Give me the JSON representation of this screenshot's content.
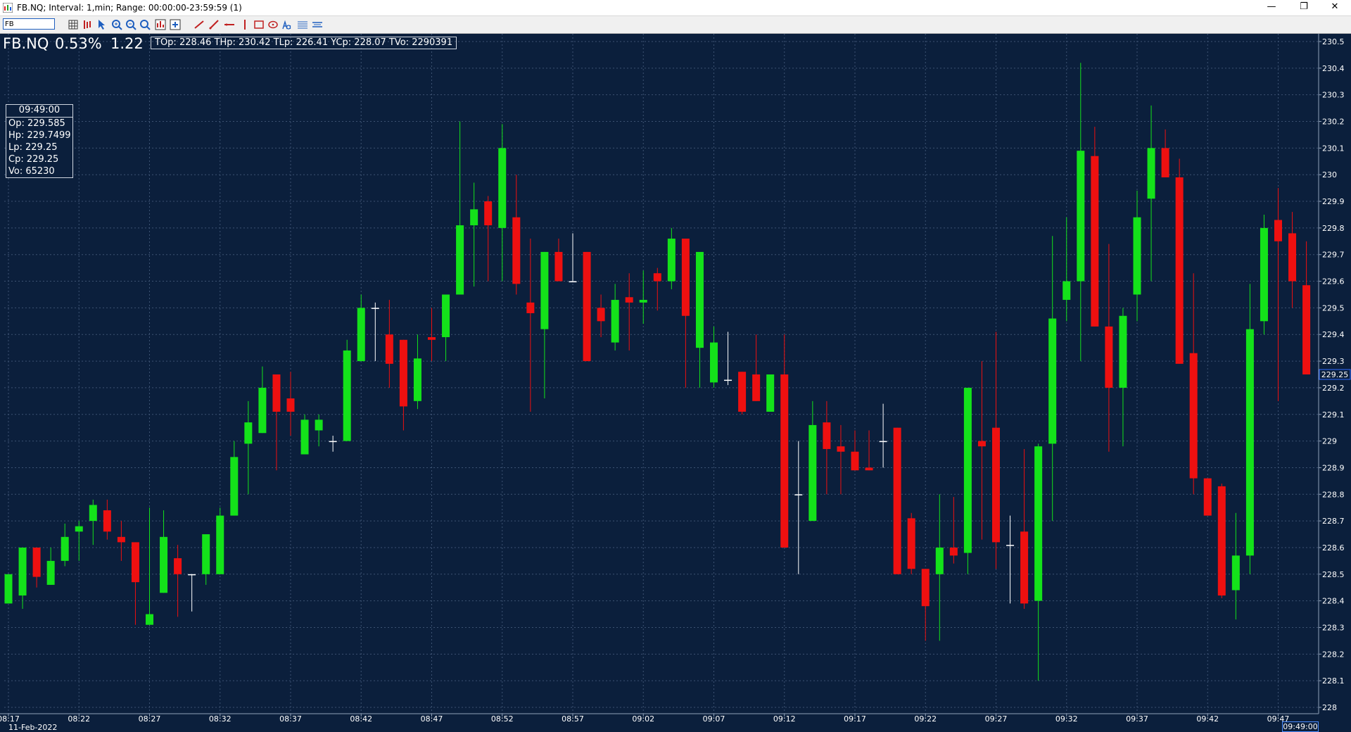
{
  "window": {
    "title": "FB.NQ; Interval: 1,min; Range: 00:00:00-23:59:59 (1)",
    "minimize_glyph": "—",
    "restore_glyph": "❐",
    "close_glyph": "✕"
  },
  "toolbar": {
    "symbol_value": "FB",
    "icons": [
      "grid-icon",
      "bars-icon",
      "cursor-arrow-icon",
      "zoom-in-icon",
      "zoom-out-icon",
      "zoom-fit-icon",
      "indicator-icon",
      "add-icon",
      "trend-line-icon",
      "ray-line-icon",
      "horizontal-line-icon",
      "vertical-line-icon",
      "rectangle-icon",
      "ellipse-icon",
      "text-icon",
      "fibonacci-icon",
      "channel-icon"
    ]
  },
  "header": {
    "symbol": "FB.NQ",
    "change_pct": "0.53%",
    "change_abs": "1.22",
    "summary": "TOp: 228.46 THp: 230.42 TLp: 226.41 YCp: 228.07 TVo: 2290391"
  },
  "ohlc_box": {
    "time": "09:49:00",
    "open": "Op: 229.585",
    "high": "Hp: 229.7499",
    "low": "Lp: 229.25",
    "close": "Cp: 229.25",
    "volume": "Vo: 65230"
  },
  "date_label": "11-Feb-2022",
  "cursor_time_label": "09:49:00",
  "colors": {
    "background": "#0b1f3c",
    "up": "#14e21a",
    "down": "#ee1010",
    "doji": "#ffffff",
    "grid": "#3c5272",
    "axis_text": "#ffffff",
    "price_marker": "#2f6bff"
  },
  "chart_data": {
    "type": "candlestick",
    "symbol": "FB.NQ",
    "interval": "1 min",
    "y_axis": {
      "min": 228,
      "max": 230.5,
      "ticks": [
        "230.5",
        "230.4",
        "230.3",
        "230.2",
        "230.1",
        "230",
        "229.9",
        "229.8",
        "229.7",
        "229.6",
        "229.5",
        "229.4",
        "229.3",
        "229.2",
        "229.1",
        "229",
        "228.9",
        "228.8",
        "228.7",
        "228.6",
        "228.5",
        "228.4",
        "228.3",
        "228.2",
        "228.1",
        "228"
      ]
    },
    "x_axis": {
      "ticks": [
        "08:17",
        "08:22",
        "08:27",
        "08:32",
        "08:37",
        "08:42",
        "08:47",
        "08:52",
        "08:57",
        "09:02",
        "09:07",
        "09:12",
        "09:17",
        "09:22",
        "09:27",
        "09:32",
        "09:37",
        "09:42",
        "09:47"
      ],
      "tick_start_minute": "08:17"
    },
    "last_price": "229.25",
    "candles": [
      {
        "t": "08:17",
        "o": 228.39,
        "h": 228.5,
        "l": 228.39,
        "c": 228.5
      },
      {
        "t": "08:18",
        "o": 228.42,
        "h": 228.6,
        "l": 228.37,
        "c": 228.6
      },
      {
        "t": "08:19",
        "o": 228.6,
        "h": 228.6,
        "l": 228.45,
        "c": 228.49
      },
      {
        "t": "08:20",
        "o": 228.46,
        "h": 228.6,
        "l": 228.46,
        "c": 228.55
      },
      {
        "t": "08:21",
        "o": 228.55,
        "h": 228.69,
        "l": 228.53,
        "c": 228.64
      },
      {
        "t": "08:22",
        "o": 228.66,
        "h": 228.7,
        "l": 228.55,
        "c": 228.68
      },
      {
        "t": "08:23",
        "o": 228.7,
        "h": 228.78,
        "l": 228.61,
        "c": 228.76
      },
      {
        "t": "08:24",
        "o": 228.74,
        "h": 228.78,
        "l": 228.63,
        "c": 228.66
      },
      {
        "t": "08:25",
        "o": 228.64,
        "h": 228.7,
        "l": 228.55,
        "c": 228.62
      },
      {
        "t": "08:26",
        "o": 228.62,
        "h": 228.62,
        "l": 228.31,
        "c": 228.47
      },
      {
        "t": "08:27",
        "o": 228.31,
        "h": 228.75,
        "l": 228.31,
        "c": 228.35
      },
      {
        "t": "08:28",
        "o": 228.43,
        "h": 228.74,
        "l": 228.43,
        "c": 228.64
      },
      {
        "t": "08:29",
        "o": 228.56,
        "h": 228.61,
        "l": 228.34,
        "c": 228.5
      },
      {
        "t": "08:30",
        "o": 228.5,
        "h": 228.5,
        "l": 228.36,
        "c": 228.5
      },
      {
        "t": "08:31",
        "o": 228.5,
        "h": 228.65,
        "l": 228.46,
        "c": 228.65
      },
      {
        "t": "08:32",
        "o": 228.5,
        "h": 228.75,
        "l": 228.5,
        "c": 228.72
      },
      {
        "t": "08:33",
        "o": 228.72,
        "h": 229,
        "l": 228.72,
        "c": 228.94
      },
      {
        "t": "08:34",
        "o": 228.99,
        "h": 229.15,
        "l": 228.8,
        "c": 229.07
      },
      {
        "t": "08:35",
        "o": 229.03,
        "h": 229.28,
        "l": 229.03,
        "c": 229.2
      },
      {
        "t": "08:36",
        "o": 229.25,
        "h": 229.25,
        "l": 228.89,
        "c": 229.11
      },
      {
        "t": "08:37",
        "o": 229.16,
        "h": 229.26,
        "l": 229.02,
        "c": 229.11
      },
      {
        "t": "08:38",
        "o": 228.95,
        "h": 229.1,
        "l": 228.95,
        "c": 229.08
      },
      {
        "t": "08:39",
        "o": 229.04,
        "h": 229.1,
        "l": 228.98,
        "c": 229.08
      },
      {
        "t": "08:40",
        "o": 229,
        "h": 229.02,
        "l": 228.96,
        "c": 229
      },
      {
        "t": "08:41",
        "o": 229,
        "h": 229.38,
        "l": 229,
        "c": 229.34
      },
      {
        "t": "08:42",
        "o": 229.3,
        "h": 229.55,
        "l": 229.3,
        "c": 229.5
      },
      {
        "t": "08:43",
        "o": 229.5,
        "h": 229.52,
        "l": 229.3,
        "c": 229.5
      },
      {
        "t": "08:44",
        "o": 229.4,
        "h": 229.53,
        "l": 229.2,
        "c": 229.29
      },
      {
        "t": "08:45",
        "o": 229.38,
        "h": 229.38,
        "l": 229.04,
        "c": 229.13
      },
      {
        "t": "08:46",
        "o": 229.15,
        "h": 229.4,
        "l": 229.12,
        "c": 229.31
      },
      {
        "t": "08:47",
        "o": 229.39,
        "h": 229.5,
        "l": 229.3,
        "c": 229.38
      },
      {
        "t": "08:48",
        "o": 229.39,
        "h": 229.55,
        "l": 229.3,
        "c": 229.55
      },
      {
        "t": "08:49",
        "o": 229.55,
        "h": 230.2,
        "l": 229.55,
        "c": 229.81
      },
      {
        "t": "08:50",
        "o": 229.81,
        "h": 229.97,
        "l": 229.58,
        "c": 229.87
      },
      {
        "t": "08:51",
        "o": 229.9,
        "h": 229.92,
        "l": 229.6,
        "c": 229.81
      },
      {
        "t": "08:52",
        "o": 229.8,
        "h": 230.19,
        "l": 229.6,
        "c": 230.1
      },
      {
        "t": "08:53",
        "o": 229.84,
        "h": 230,
        "l": 229.55,
        "c": 229.59
      },
      {
        "t": "08:54",
        "o": 229.52,
        "h": 229.76,
        "l": 229.11,
        "c": 229.48
      },
      {
        "t": "08:55",
        "o": 229.42,
        "h": 229.71,
        "l": 229.16,
        "c": 229.71
      },
      {
        "t": "08:56",
        "o": 229.71,
        "h": 229.76,
        "l": 229.6,
        "c": 229.6
      },
      {
        "t": "08:57",
        "o": 229.6,
        "h": 229.78,
        "l": 229.6,
        "c": 229.6
      },
      {
        "t": "08:58",
        "o": 229.71,
        "h": 229.71,
        "l": 229.3,
        "c": 229.3
      },
      {
        "t": "08:59",
        "o": 229.5,
        "h": 229.55,
        "l": 229.39,
        "c": 229.45
      },
      {
        "t": "09:00",
        "o": 229.37,
        "h": 229.59,
        "l": 229.34,
        "c": 229.53
      },
      {
        "t": "09:01",
        "o": 229.54,
        "h": 229.63,
        "l": 229.34,
        "c": 229.52
      },
      {
        "t": "09:02",
        "o": 229.52,
        "h": 229.64,
        "l": 229.44,
        "c": 229.53
      },
      {
        "t": "09:03",
        "o": 229.63,
        "h": 229.65,
        "l": 229.49,
        "c": 229.6
      },
      {
        "t": "09:04",
        "o": 229.6,
        "h": 229.8,
        "l": 229.57,
        "c": 229.76
      },
      {
        "t": "09:05",
        "o": 229.76,
        "h": 229.76,
        "l": 229.2,
        "c": 229.47
      },
      {
        "t": "09:06",
        "o": 229.35,
        "h": 229.7,
        "l": 229.2,
        "c": 229.71
      },
      {
        "t": "09:07",
        "o": 229.22,
        "h": 229.43,
        "l": 229.2,
        "c": 229.37
      },
      {
        "t": "09:08",
        "o": 229.23,
        "h": 229.41,
        "l": 229.21,
        "c": 229.23
      },
      {
        "t": "09:09",
        "o": 229.26,
        "h": 229.26,
        "l": 229.1,
        "c": 229.11
      },
      {
        "t": "09:10",
        "o": 229.25,
        "h": 229.4,
        "l": 229.15,
        "c": 229.15
      },
      {
        "t": "09:11",
        "o": 229.11,
        "h": 229.25,
        "l": 229.11,
        "c": 229.25
      },
      {
        "t": "09:12",
        "o": 229.25,
        "h": 229.4,
        "l": 228.6,
        "c": 228.6
      },
      {
        "t": "09:13",
        "o": 228.8,
        "h": 229,
        "l": 228.5,
        "c": 228.8
      },
      {
        "t": "09:14",
        "o": 228.7,
        "h": 229.15,
        "l": 228.7,
        "c": 229.06
      },
      {
        "t": "09:15",
        "o": 229.07,
        "h": 229.15,
        "l": 228.8,
        "c": 228.97
      },
      {
        "t": "09:16",
        "o": 228.98,
        "h": 229.06,
        "l": 228.8,
        "c": 228.96
      },
      {
        "t": "09:17",
        "o": 228.96,
        "h": 229.04,
        "l": 228.89,
        "c": 228.89
      },
      {
        "t": "09:18",
        "o": 228.9,
        "h": 229.04,
        "l": 228.89,
        "c": 228.89
      },
      {
        "t": "09:19",
        "o": 229,
        "h": 229.14,
        "l": 228.9,
        "c": 229
      },
      {
        "t": "09:20",
        "o": 229.05,
        "h": 229.05,
        "l": 228.5,
        "c": 228.5
      },
      {
        "t": "09:21",
        "o": 228.71,
        "h": 228.73,
        "l": 228.5,
        "c": 228.52
      },
      {
        "t": "09:22",
        "o": 228.52,
        "h": 228.52,
        "l": 228.25,
        "c": 228.38
      },
      {
        "t": "09:23",
        "o": 228.5,
        "h": 228.8,
        "l": 228.25,
        "c": 228.6
      },
      {
        "t": "09:24",
        "o": 228.6,
        "h": 228.79,
        "l": 228.54,
        "c": 228.57
      },
      {
        "t": "09:25",
        "o": 228.58,
        "h": 229.2,
        "l": 228.5,
        "c": 229.2
      },
      {
        "t": "09:26",
        "o": 229,
        "h": 229.3,
        "l": 228.63,
        "c": 228.98
      },
      {
        "t": "09:27",
        "o": 229.05,
        "h": 229.41,
        "l": 228.52,
        "c": 228.62
      },
      {
        "t": "09:28",
        "o": 228.61,
        "h": 228.72,
        "l": 228.39,
        "c": 228.61
      },
      {
        "t": "09:29",
        "o": 228.66,
        "h": 228.97,
        "l": 228.37,
        "c": 228.39
      },
      {
        "t": "09:30",
        "o": 228.4,
        "h": 228.99,
        "l": 228.1,
        "c": 228.98
      },
      {
        "t": "09:31",
        "o": 228.99,
        "h": 229.77,
        "l": 228.7,
        "c": 229.46
      },
      {
        "t": "09:32",
        "o": 229.53,
        "h": 229.84,
        "l": 229.45,
        "c": 229.6
      },
      {
        "t": "09:33",
        "o": 229.6,
        "h": 230.42,
        "l": 229.3,
        "c": 230.09
      },
      {
        "t": "09:34",
        "o": 230.07,
        "h": 230.18,
        "l": 229.43,
        "c": 229.43
      },
      {
        "t": "09:35",
        "o": 229.43,
        "h": 229.74,
        "l": 228.96,
        "c": 229.2
      },
      {
        "t": "09:36",
        "o": 229.2,
        "h": 229.5,
        "l": 228.98,
        "c": 229.47
      },
      {
        "t": "09:37",
        "o": 229.55,
        "h": 229.94,
        "l": 229.45,
        "c": 229.84
      },
      {
        "t": "09:38",
        "o": 229.91,
        "h": 230.26,
        "l": 229.6,
        "c": 230.1
      },
      {
        "t": "09:39",
        "o": 230.1,
        "h": 230.17,
        "l": 229.99,
        "c": 229.99
      },
      {
        "t": "09:40",
        "o": 229.99,
        "h": 230.06,
        "l": 229.29,
        "c": 229.29
      },
      {
        "t": "09:41",
        "o": 229.33,
        "h": 229.63,
        "l": 228.8,
        "c": 228.86
      },
      {
        "t": "09:42",
        "o": 228.86,
        "h": 228.86,
        "l": 228.72,
        "c": 228.72
      },
      {
        "t": "09:43",
        "o": 228.83,
        "h": 228.84,
        "l": 228.41,
        "c": 228.42
      },
      {
        "t": "09:44",
        "o": 228.44,
        "h": 228.73,
        "l": 228.33,
        "c": 228.57
      },
      {
        "t": "09:45",
        "o": 228.57,
        "h": 229.59,
        "l": 228.5,
        "c": 229.42
      },
      {
        "t": "09:46",
        "o": 229.45,
        "h": 229.85,
        "l": 229.4,
        "c": 229.8
      },
      {
        "t": "09:47",
        "o": 229.83,
        "h": 229.95,
        "l": 229.15,
        "c": 229.75
      },
      {
        "t": "09:48",
        "o": 229.78,
        "h": 229.86,
        "l": 229.5,
        "c": 229.6
      },
      {
        "t": "09:49",
        "o": 229.585,
        "h": 229.7499,
        "l": 229.25,
        "c": 229.25
      }
    ]
  }
}
